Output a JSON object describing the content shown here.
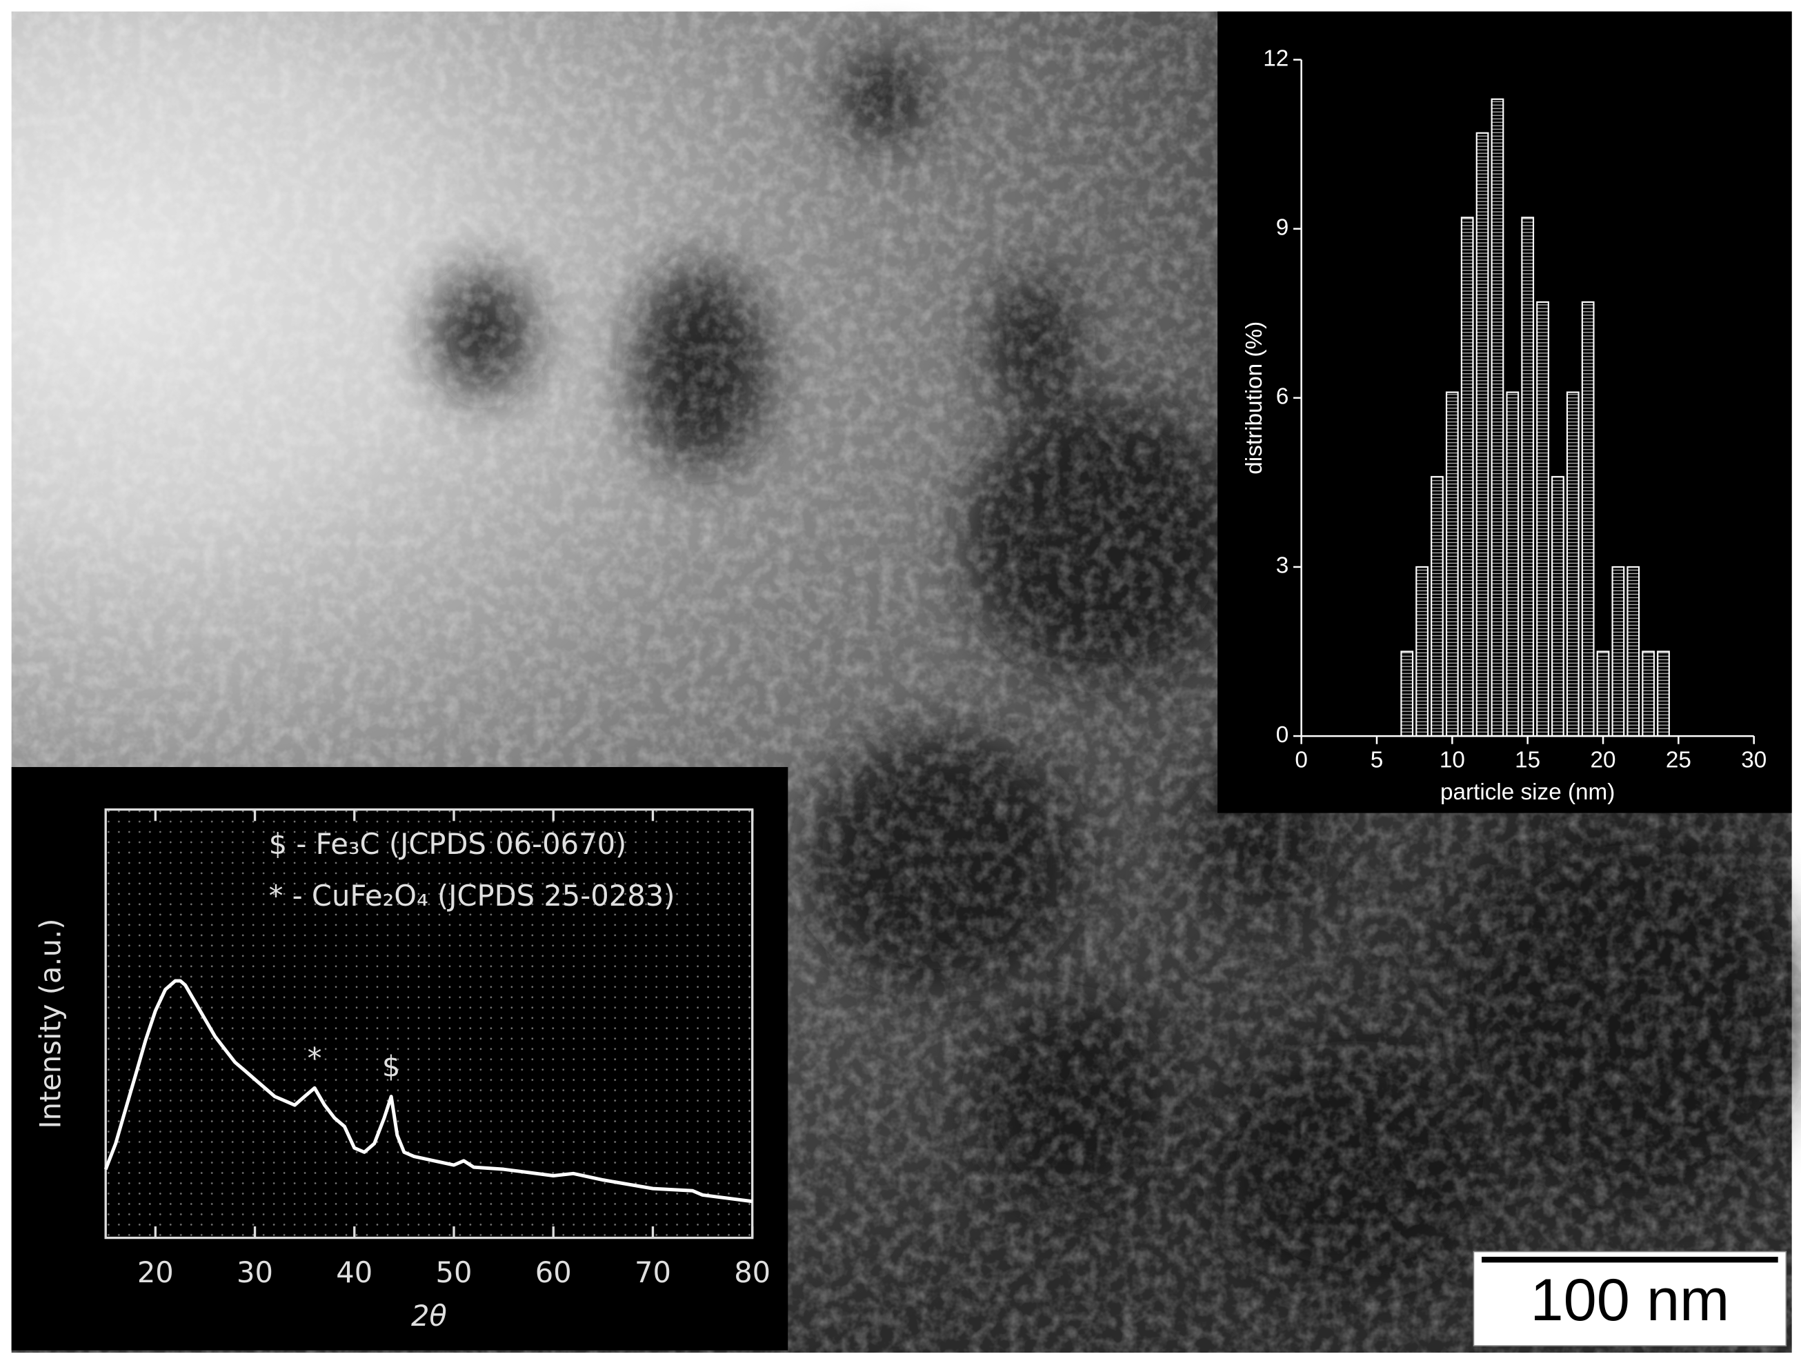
{
  "chart_data": [
    {
      "type": "histogram",
      "xlabel": "particle size (nm)",
      "ylabel": "distribution (%)",
      "bins": [
        6.5,
        7.5,
        8.5,
        9.5,
        10.5,
        11.5,
        12.5,
        13.5,
        14.5,
        15.5,
        16.5,
        17.5,
        18.5,
        19.5,
        20.5,
        21.5,
        22.5,
        23.5,
        24.5
      ],
      "values": [
        1.5,
        3.0,
        4.6,
        6.1,
        9.2,
        10.7,
        11.3,
        6.1,
        9.2,
        7.7,
        4.6,
        6.1,
        7.7,
        1.5,
        3.0,
        3.0,
        1.5,
        1.5
      ],
      "color": "#ffffff",
      "xlim": [
        0,
        30
      ],
      "xticks": [
        0,
        5,
        10,
        15,
        20,
        25,
        30
      ],
      "ylim": [
        0,
        12
      ],
      "yticks": [
        0,
        3,
        6,
        9,
        12
      ]
    },
    {
      "type": "line",
      "xlabel": "2θ",
      "ylabel": "Intensity (a.u.)",
      "notes": [
        "$ - Fe₃C (JCPDS 06-0670)",
        "* - CuFe₂O₄ (JCPDS 25-0283)"
      ],
      "annotations": [
        {
          "text": "*",
          "x": 36
        },
        {
          "text": "$",
          "x": 43.7
        }
      ],
      "x": [
        15,
        16,
        17,
        18,
        19,
        20,
        21,
        22,
        22.5,
        23,
        24,
        25,
        26,
        27,
        28,
        29,
        30,
        31,
        32,
        33,
        34,
        35,
        36,
        37,
        38,
        39,
        40,
        41,
        42,
        43,
        43.7,
        44.3,
        45,
        46,
        48,
        50,
        51,
        52,
        55,
        60,
        62,
        65,
        70,
        74,
        75,
        80
      ],
      "values": [
        16,
        22,
        30,
        38,
        46,
        53,
        58,
        60,
        60,
        59,
        55,
        51,
        47,
        44,
        41,
        39,
        37,
        35,
        33,
        32,
        31,
        33,
        35,
        31,
        28,
        26,
        21,
        20,
        22,
        28,
        33,
        24,
        20,
        19,
        18,
        17,
        18,
        16.5,
        16,
        14.5,
        15,
        13.5,
        11.5,
        11,
        10,
        8.5
      ],
      "color": "#ffffff",
      "xlim": [
        15,
        80
      ],
      "xticks": [
        20,
        30,
        40,
        50,
        60,
        70,
        80
      ],
      "ylim": [
        0,
        100
      ],
      "grid": true
    }
  ],
  "image": {
    "scale_bar": "100 nm"
  }
}
